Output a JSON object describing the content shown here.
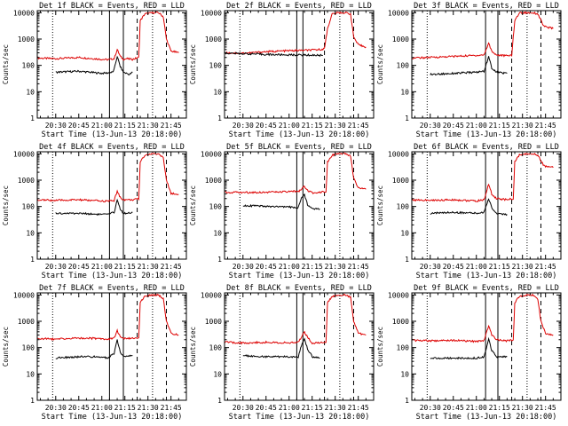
{
  "figure": {
    "start_time_label": "Start Time (13-Jun-13 20:18:00)"
  },
  "colors": {
    "events": "#000000",
    "lld": "#dd0000",
    "axes": "#000000",
    "background": "#ffffff"
  },
  "chart_data": [
    {
      "type": "line",
      "title": "Det 1f BLACK = Events, RED = LLD",
      "xlabel": "Start Time (13-Jun-13 20:18:00)",
      "ylabel": "Counts/sec",
      "yscale": "log",
      "ylim": [
        1,
        12000
      ],
      "xlim": [
        "20:18",
        "21:55"
      ],
      "x_ticks": [
        "20:30",
        "20:45",
        "21:00",
        "21:15",
        "21:30",
        "21:45"
      ],
      "y_ticks": [
        "1",
        "10",
        "100",
        "1000",
        "10000"
      ],
      "series": [
        {
          "key": "lld",
          "color": "#dd0000",
          "x": [
            "20:18",
            "20:30",
            "20:45",
            "21:00",
            "21:04",
            "21:08",
            "21:10",
            "21:12",
            "21:14",
            "21:16",
            "21:20",
            "21:24",
            "21:25",
            "21:28",
            "21:33",
            "21:37",
            "21:40",
            "21:42",
            "21:45",
            "21:50"
          ],
          "y": [
            190,
            180,
            200,
            170,
            165,
            180,
            400,
            220,
            170,
            180,
            170,
            200,
            5000,
            9000,
            10000,
            10000,
            7000,
            1000,
            350,
            300
          ]
        },
        {
          "key": "events",
          "color": "#000000",
          "x": [
            "20:30",
            "20:45",
            "21:00",
            "21:04",
            "21:07",
            "21:08",
            "21:10",
            "21:12",
            "21:14",
            "21:16",
            "21:18",
            "21:20"
          ],
          "y": [
            55,
            60,
            50,
            52,
            55,
            70,
            220,
            90,
            55,
            50,
            45,
            55
          ]
        }
      ],
      "solid_lines": [
        "21:05",
        "21:14"
      ],
      "dashed_lines": [
        "21:23",
        "21:42"
      ],
      "dotted_lines": [
        "20:28",
        "21:33"
      ]
    },
    {
      "type": "line",
      "title": "Det 2f BLACK = Events, RED = LLD",
      "xlabel": "Start Time (13-Jun-13 20:18:00)",
      "ylabel": "Counts/sec",
      "yscale": "log",
      "ylim": [
        1,
        12000
      ],
      "xlim": [
        "20:18",
        "21:55"
      ],
      "x_ticks": [
        "20:30",
        "20:45",
        "21:00",
        "21:15",
        "21:30",
        "21:45"
      ],
      "y_ticks": [
        "1",
        "10",
        "100",
        "1000",
        "10000"
      ],
      "series": [
        {
          "key": "lld",
          "color": "#dd0000",
          "x": [
            "20:18",
            "20:30",
            "20:45",
            "21:00",
            "21:15",
            "21:20",
            "21:23",
            "21:25",
            "21:28",
            "21:32",
            "21:37",
            "21:40",
            "21:42",
            "21:45",
            "21:50"
          ],
          "y": [
            300,
            290,
            330,
            360,
            380,
            400,
            430,
            2500,
            9000,
            10000,
            10000,
            9000,
            1200,
            600,
            500
          ]
        },
        {
          "key": "events",
          "color": "#000000",
          "x": [
            "20:18",
            "20:30",
            "20:45",
            "21:00",
            "21:15",
            "21:22"
          ],
          "y": [
            290,
            280,
            260,
            250,
            245,
            240
          ]
        }
      ],
      "solid_lines": [
        "21:05",
        "21:09"
      ],
      "dashed_lines": [
        "21:23",
        "21:42"
      ],
      "dotted_lines": [
        "20:28",
        "21:33"
      ]
    },
    {
      "type": "line",
      "title": "Det 3f BLACK = Events, RED = LLD",
      "xlabel": "Start Time (13-Jun-13 20:18:00)",
      "ylabel": "Counts/sec",
      "yscale": "log",
      "ylim": [
        1,
        12000
      ],
      "xlim": [
        "20:18",
        "21:55"
      ],
      "x_ticks": [
        "20:30",
        "20:45",
        "21:00",
        "21:15",
        "21:30",
        "21:45"
      ],
      "y_ticks": [
        "1",
        "10",
        "100",
        "1000",
        "10000"
      ],
      "series": [
        {
          "key": "lld",
          "color": "#dd0000",
          "x": [
            "20:18",
            "20:30",
            "20:45",
            "21:00",
            "21:05",
            "21:08",
            "21:10",
            "21:13",
            "21:20",
            "21:23",
            "21:25",
            "21:28",
            "21:33",
            "21:37",
            "21:40",
            "21:44",
            "21:50"
          ],
          "y": [
            190,
            200,
            220,
            240,
            250,
            700,
            350,
            250,
            230,
            250,
            5000,
            10000,
            10000,
            10000,
            9000,
            3000,
            2500
          ]
        },
        {
          "key": "events",
          "color": "#000000",
          "x": [
            "20:30",
            "20:45",
            "21:00",
            "21:05",
            "21:08",
            "21:10",
            "21:13",
            "21:20"
          ],
          "y": [
            45,
            50,
            55,
            60,
            220,
            80,
            55,
            50
          ]
        }
      ],
      "solid_lines": [
        "21:06",
        "21:14"
      ],
      "dashed_lines": [
        "21:23",
        "21:42"
      ],
      "dotted_lines": [
        "20:28",
        "21:33"
      ]
    },
    {
      "type": "line",
      "title": "Det 4f BLACK = Events, RED = LLD",
      "xlabel": "Start Time (13-Jun-13 20:18:00)",
      "ylabel": "Counts/sec",
      "yscale": "log",
      "ylim": [
        1,
        12000
      ],
      "xlim": [
        "20:18",
        "21:55"
      ],
      "x_ticks": [
        "20:30",
        "20:45",
        "21:00",
        "21:15",
        "21:30",
        "21:45"
      ],
      "y_ticks": [
        "1",
        "10",
        "100",
        "1000",
        "10000"
      ],
      "series": [
        {
          "key": "lld",
          "color": "#dd0000",
          "x": [
            "20:18",
            "20:30",
            "20:45",
            "21:00",
            "21:04",
            "21:08",
            "21:10",
            "21:12",
            "21:14",
            "21:20",
            "21:24",
            "21:25",
            "21:28",
            "21:33",
            "21:37",
            "21:40",
            "21:42",
            "21:45",
            "21:50"
          ],
          "y": [
            180,
            170,
            180,
            160,
            160,
            170,
            380,
            220,
            180,
            180,
            190,
            5000,
            9000,
            10000,
            10000,
            7000,
            1000,
            320,
            280
          ]
        },
        {
          "key": "events",
          "color": "#000000",
          "x": [
            "20:30",
            "20:45",
            "21:00",
            "21:04",
            "21:08",
            "21:10",
            "21:12",
            "21:14",
            "21:20"
          ],
          "y": [
            55,
            55,
            50,
            50,
            60,
            180,
            80,
            55,
            60
          ]
        }
      ],
      "solid_lines": [
        "21:05",
        "21:14"
      ],
      "dashed_lines": [
        "21:23",
        "21:42"
      ],
      "dotted_lines": [
        "20:28",
        "21:33"
      ]
    },
    {
      "type": "line",
      "title": "Det 5f BLACK = Events, RED = LLD",
      "xlabel": "Start Time (13-Jun-13 20:18:00)",
      "ylabel": "Counts/sec",
      "yscale": "log",
      "ylim": [
        1,
        12000
      ],
      "xlim": [
        "20:18",
        "21:55"
      ],
      "x_ticks": [
        "20:30",
        "20:45",
        "21:00",
        "21:15",
        "21:30",
        "21:45"
      ],
      "y_ticks": [
        "1",
        "10",
        "100",
        "1000",
        "10000"
      ],
      "series": [
        {
          "key": "lld",
          "color": "#dd0000",
          "x": [
            "20:18",
            "20:30",
            "20:45",
            "21:00",
            "21:06",
            "21:08",
            "21:10",
            "21:12",
            "21:15",
            "21:20",
            "21:24",
            "21:25",
            "21:28",
            "21:33",
            "21:37",
            "21:40",
            "21:42",
            "21:45",
            "21:50"
          ],
          "y": [
            350,
            340,
            350,
            360,
            380,
            450,
            600,
            400,
            330,
            350,
            380,
            5000,
            9000,
            10000,
            10000,
            8000,
            1200,
            500,
            450
          ]
        },
        {
          "key": "events",
          "color": "#000000",
          "x": [
            "20:30",
            "20:45",
            "21:00",
            "21:06",
            "21:08",
            "21:10",
            "21:12",
            "21:15",
            "21:20"
          ],
          "y": [
            110,
            100,
            95,
            90,
            200,
            280,
            120,
            85,
            80
          ]
        }
      ],
      "solid_lines": [
        "21:05",
        "21:09"
      ],
      "dashed_lines": [
        "21:23",
        "21:42"
      ],
      "dotted_lines": [
        "20:28",
        "21:33"
      ]
    },
    {
      "type": "line",
      "title": "Det 6f BLACK = Events, RED = LLD",
      "xlabel": "Start Time (13-Jun-13 20:18:00)",
      "ylabel": "Counts/sec",
      "yscale": "log",
      "ylim": [
        1,
        12000
      ],
      "xlim": [
        "20:18",
        "21:55"
      ],
      "x_ticks": [
        "20:30",
        "20:45",
        "21:00",
        "21:15",
        "21:30",
        "21:45"
      ],
      "y_ticks": [
        "1",
        "10",
        "100",
        "1000",
        "10000"
      ],
      "series": [
        {
          "key": "lld",
          "color": "#dd0000",
          "x": [
            "20:18",
            "20:30",
            "20:45",
            "21:00",
            "21:05",
            "21:08",
            "21:10",
            "21:13",
            "21:20",
            "21:24",
            "21:25",
            "21:28",
            "21:33",
            "21:37",
            "21:40",
            "21:44",
            "21:50"
          ],
          "y": [
            180,
            170,
            180,
            160,
            180,
            700,
            300,
            200,
            180,
            200,
            5000,
            9000,
            10000,
            10000,
            9000,
            3500,
            3000
          ]
        },
        {
          "key": "events",
          "color": "#000000",
          "x": [
            "20:30",
            "20:45",
            "21:00",
            "21:05",
            "21:08",
            "21:10",
            "21:13",
            "21:20"
          ],
          "y": [
            55,
            60,
            55,
            60,
            200,
            90,
            55,
            50
          ]
        }
      ],
      "solid_lines": [
        "21:06",
        "21:14"
      ],
      "dashed_lines": [
        "21:23",
        "21:42"
      ],
      "dotted_lines": [
        "20:28",
        "21:33"
      ]
    },
    {
      "type": "line",
      "title": "Det 7f BLACK = Events, RED = LLD",
      "xlabel": "Start Time (13-Jun-13 20:18:00)",
      "ylabel": "Counts/sec",
      "yscale": "log",
      "ylim": [
        1,
        12000
      ],
      "xlim": [
        "20:18",
        "21:55"
      ],
      "x_ticks": [
        "20:30",
        "20:45",
        "21:00",
        "21:15",
        "21:30",
        "21:45"
      ],
      "y_ticks": [
        "1",
        "10",
        "100",
        "1000",
        "10000"
      ],
      "series": [
        {
          "key": "lld",
          "color": "#dd0000",
          "x": [
            "20:18",
            "20:30",
            "20:45",
            "21:00",
            "21:04",
            "21:08",
            "21:10",
            "21:12",
            "21:14",
            "21:20",
            "21:24",
            "21:25",
            "21:28",
            "21:33",
            "21:37",
            "21:40",
            "21:42",
            "21:45",
            "21:50"
          ],
          "y": [
            220,
            210,
            230,
            220,
            210,
            230,
            450,
            250,
            220,
            220,
            250,
            5000,
            9000,
            10000,
            10000,
            7000,
            1000,
            350,
            300
          ]
        },
        {
          "key": "events",
          "color": "#000000",
          "x": [
            "20:30",
            "20:45",
            "21:00",
            "21:04",
            "21:08",
            "21:10",
            "21:12",
            "21:14",
            "21:20"
          ],
          "y": [
            40,
            45,
            45,
            40,
            60,
            200,
            70,
            45,
            50
          ]
        }
      ],
      "solid_lines": [
        "21:05",
        "21:14"
      ],
      "dashed_lines": [
        "21:23",
        "21:42"
      ],
      "dotted_lines": [
        "20:28",
        "21:33"
      ]
    },
    {
      "type": "line",
      "title": "Det 8f BLACK = Events, RED = LLD",
      "xlabel": "Start Time (13-Jun-13 20:18:00)",
      "ylabel": "Counts/sec",
      "yscale": "log",
      "ylim": [
        1,
        12000
      ],
      "xlim": [
        "20:18",
        "21:55"
      ],
      "x_ticks": [
        "20:30",
        "20:45",
        "21:00",
        "21:15",
        "21:30",
        "21:45"
      ],
      "y_ticks": [
        "1",
        "10",
        "100",
        "1000",
        "10000"
      ],
      "series": [
        {
          "key": "lld",
          "color": "#dd0000",
          "x": [
            "20:18",
            "20:30",
            "20:45",
            "21:00",
            "21:06",
            "21:08",
            "21:10",
            "21:12",
            "21:15",
            "21:20",
            "21:24",
            "21:25",
            "21:28",
            "21:33",
            "21:37",
            "21:40",
            "21:42",
            "21:45",
            "21:50"
          ],
          "y": [
            160,
            150,
            160,
            150,
            160,
            250,
            400,
            250,
            150,
            150,
            160,
            5000,
            9000,
            10000,
            10000,
            8000,
            1000,
            350,
            300
          ]
        },
        {
          "key": "events",
          "color": "#000000",
          "x": [
            "20:30",
            "20:45",
            "21:00",
            "21:06",
            "21:08",
            "21:10",
            "21:12",
            "21:15",
            "21:20"
          ],
          "y": [
            50,
            45,
            45,
            45,
            120,
            220,
            90,
            45,
            40
          ]
        }
      ],
      "solid_lines": [
        "21:05",
        "21:09"
      ],
      "dashed_lines": [
        "21:23",
        "21:42"
      ],
      "dotted_lines": [
        "20:28",
        "21:33"
      ]
    },
    {
      "type": "line",
      "title": "Det 9f BLACK = Events, RED = LLD",
      "xlabel": "Start Time (13-Jun-13 20:18:00)",
      "ylabel": "Counts/sec",
      "yscale": "log",
      "ylim": [
        1,
        12000
      ],
      "xlim": [
        "20:18",
        "21:55"
      ],
      "x_ticks": [
        "20:30",
        "20:45",
        "21:00",
        "21:15",
        "21:30",
        "21:45"
      ],
      "y_ticks": [
        "1",
        "10",
        "100",
        "1000",
        "10000"
      ],
      "series": [
        {
          "key": "lld",
          "color": "#dd0000",
          "x": [
            "20:18",
            "20:30",
            "20:45",
            "21:00",
            "21:05",
            "21:08",
            "21:10",
            "21:13",
            "21:20",
            "21:24",
            "21:25",
            "21:28",
            "21:33",
            "21:37",
            "21:40",
            "21:42",
            "21:45",
            "21:50"
          ],
          "y": [
            190,
            180,
            190,
            170,
            190,
            700,
            300,
            200,
            180,
            200,
            5000,
            9000,
            10000,
            10000,
            7000,
            1000,
            350,
            300
          ]
        },
        {
          "key": "events",
          "color": "#000000",
          "x": [
            "20:30",
            "20:45",
            "21:00",
            "21:05",
            "21:08",
            "21:10",
            "21:13",
            "21:20"
          ],
          "y": [
            40,
            40,
            40,
            45,
            200,
            80,
            45,
            45
          ]
        }
      ],
      "solid_lines": [
        "21:06",
        "21:14"
      ],
      "dashed_lines": [
        "21:23",
        "21:42"
      ],
      "dotted_lines": [
        "20:28",
        "21:33"
      ]
    }
  ]
}
